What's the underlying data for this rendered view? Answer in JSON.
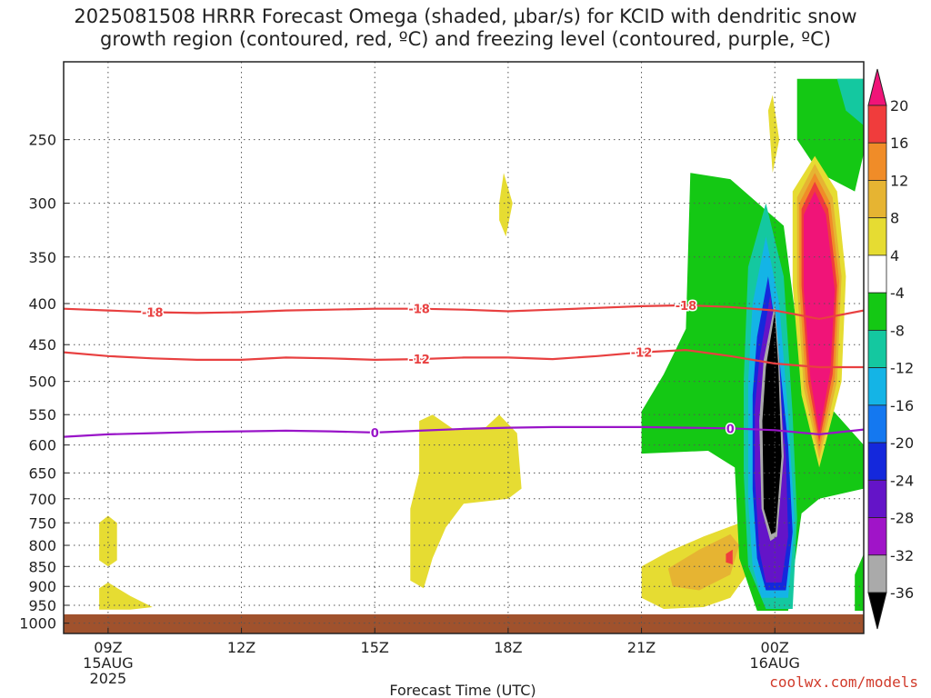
{
  "title": {
    "line1": "2025081508 HRRR Forecast Omega (shaded, μbar/s) for KCID with dendritic snow",
    "line2": "growth region (contoured, red, ºC) and freezing level (contoured, purple, ºC)"
  },
  "credit": "coolwx.com/models",
  "chart_data": {
    "type": "heatmap",
    "xlabel": "Forecast Time (UTC)",
    "ylabel": "",
    "x_ticks": [
      {
        "hour": 0,
        "label": [
          "09Z",
          "15AUG",
          "2025"
        ]
      },
      {
        "hour": 3,
        "label": [
          "12Z"
        ]
      },
      {
        "hour": 6,
        "label": [
          "15Z"
        ]
      },
      {
        "hour": 9,
        "label": [
          "18Z"
        ]
      },
      {
        "hour": 12,
        "label": [
          "21Z"
        ]
      },
      {
        "hour": 15,
        "label": [
          "00Z",
          "16AUG"
        ]
      }
    ],
    "xlim_hours": [
      -1,
      17
    ],
    "y_scale": "log",
    "ylim": [
      1030,
      200
    ],
    "y_ticks": [
      250,
      300,
      350,
      400,
      450,
      500,
      550,
      600,
      650,
      700,
      750,
      800,
      850,
      900,
      950,
      1000
    ],
    "grid": true,
    "ground_level_hpa": 975,
    "ground_color": "#a0522d",
    "colorbar": {
      "levels": [
        20,
        16,
        12,
        8,
        4,
        -4,
        -8,
        -12,
        -16,
        -20,
        -24,
        -28,
        -32,
        -36
      ],
      "colors": [
        "#f01478",
        "#f03c3c",
        "#f08c28",
        "#e6b432",
        "#e6dc32",
        "#ffffff",
        "#14c814",
        "#14c8a0",
        "#14b4e6",
        "#1478f0",
        "#1428dc",
        "#6414c8",
        "#a014c8",
        "#aaaaaa",
        "#000000"
      ]
    },
    "contours": [
      {
        "name": "-18",
        "color": "#e84040",
        "x": [
          -1,
          0,
          1,
          2,
          3,
          4,
          5,
          6,
          7,
          8,
          9,
          10,
          11,
          12,
          13,
          14,
          15,
          16,
          17
        ],
        "y": [
          406,
          408,
          410,
          411,
          410,
          408,
          407,
          406,
          406,
          407,
          409,
          407,
          405,
          403,
          402,
          404,
          408,
          418,
          408
        ],
        "labels_at_hours": [
          1,
          7,
          13
        ]
      },
      {
        "name": "-12",
        "color": "#e84040",
        "x": [
          -1,
          0,
          1,
          2,
          3,
          4,
          5,
          6,
          7,
          8,
          9,
          10,
          11,
          12,
          13,
          14,
          15,
          16,
          17
        ],
        "y": [
          460,
          465,
          468,
          470,
          470,
          467,
          468,
          470,
          469,
          467,
          467,
          469,
          465,
          460,
          457,
          465,
          475,
          480,
          480
        ],
        "labels_at_hours": [
          7,
          12
        ]
      },
      {
        "name": "0",
        "color": "#9914c8",
        "x": [
          -1,
          0,
          1,
          2,
          3,
          4,
          5,
          6,
          7,
          8,
          9,
          10,
          11,
          12,
          13,
          14,
          15,
          16,
          17
        ],
        "y": [
          586,
          582,
          580,
          578,
          577,
          576,
          577,
          579,
          576,
          573,
          571,
          570,
          570,
          570,
          571,
          572,
          575,
          582,
          574
        ],
        "labels_at_hours": [
          6,
          14
        ]
      }
    ],
    "shaded_regions": [
      {
        "level": 4,
        "color": "#e6dc32",
        "points_hr_hpa": [
          [
            -0.2,
            750
          ],
          [
            0,
            735
          ],
          [
            0.2,
            750
          ],
          [
            0.2,
            835
          ],
          [
            0,
            850
          ],
          [
            -0.2,
            835
          ]
        ]
      },
      {
        "level": 4,
        "color": "#e6dc32",
        "points_hr_hpa": [
          [
            -0.2,
            905
          ],
          [
            0,
            890
          ],
          [
            0.5,
            925
          ],
          [
            1,
            955
          ],
          [
            0.5,
            962
          ],
          [
            -0.2,
            962
          ]
        ]
      },
      {
        "level": 4,
        "color": "#e6dc32",
        "points_hr_hpa": [
          [
            8.8,
            300
          ],
          [
            8.9,
            275
          ],
          [
            9.1,
            300
          ],
          [
            8.95,
            330
          ],
          [
            8.8,
            315
          ]
        ]
      },
      {
        "level": 4,
        "color": "#e6dc32",
        "points_hr_hpa": [
          [
            7,
            560
          ],
          [
            7.3,
            550
          ],
          [
            7.8,
            575
          ],
          [
            8.5,
            570
          ],
          [
            8.8,
            550
          ],
          [
            9.2,
            580
          ],
          [
            9.3,
            680
          ],
          [
            9,
            700
          ],
          [
            8,
            710
          ],
          [
            7.6,
            760
          ],
          [
            7.3,
            830
          ],
          [
            7.1,
            905
          ],
          [
            6.8,
            885
          ],
          [
            6.8,
            720
          ],
          [
            7,
            650
          ]
        ]
      },
      {
        "level": 4,
        "color": "#e6dc32",
        "points_hr_hpa": [
          [
            12,
            850
          ],
          [
            12.6,
            815
          ],
          [
            13.4,
            780
          ],
          [
            14.5,
            740
          ],
          [
            14.5,
            850
          ],
          [
            14,
            930
          ],
          [
            13.4,
            955
          ],
          [
            12.5,
            960
          ],
          [
            12,
            930
          ]
        ]
      },
      {
        "level": 8,
        "color": "#e6b432",
        "points_hr_hpa": [
          [
            12.6,
            855
          ],
          [
            13.3,
            810
          ],
          [
            14,
            775
          ],
          [
            14.2,
            800
          ],
          [
            14,
            870
          ],
          [
            13.3,
            910
          ],
          [
            12.7,
            900
          ]
        ]
      },
      {
        "level": 16,
        "color": "#f03c3c",
        "points_hr_hpa": [
          [
            13.9,
            820
          ],
          [
            14.05,
            810
          ],
          [
            14.05,
            845
          ],
          [
            13.9,
            840
          ]
        ]
      },
      {
        "level": 4,
        "color": "#e6dc32",
        "points_hr_hpa": [
          [
            14.85,
            230
          ],
          [
            14.95,
            220
          ],
          [
            15.1,
            250
          ],
          [
            14.95,
            275
          ]
        ]
      },
      {
        "level": -4,
        "color": "#14c814",
        "points_hr_hpa": [
          [
            13.1,
            275
          ],
          [
            14,
            280
          ],
          [
            15.2,
            320
          ],
          [
            15.5,
            430
          ],
          [
            16,
            520
          ],
          [
            17,
            600
          ],
          [
            17,
            680
          ],
          [
            16,
            700
          ],
          [
            15.6,
            730
          ],
          [
            15.3,
            965
          ],
          [
            14.6,
            965
          ],
          [
            14.2,
            830
          ],
          [
            14.1,
            640
          ],
          [
            13.5,
            610
          ],
          [
            12,
            615
          ],
          [
            12,
            545
          ],
          [
            12.5,
            490
          ],
          [
            13,
            430
          ]
        ]
      },
      {
        "level": -4,
        "color": "#14c814",
        "points_hr_hpa": [
          [
            15.5,
            210
          ],
          [
            17,
            210
          ],
          [
            17,
            260
          ],
          [
            16.8,
            290
          ],
          [
            16,
            275
          ],
          [
            15.5,
            250
          ]
        ]
      },
      {
        "level": -4,
        "color": "#14c814",
        "points_hr_hpa": [
          [
            16.8,
            870
          ],
          [
            17,
            820
          ],
          [
            17,
            965
          ],
          [
            16.8,
            965
          ]
        ]
      },
      {
        "level": -8,
        "color": "#14c8a0",
        "points_hr_hpa": [
          [
            16.4,
            210
          ],
          [
            17,
            210
          ],
          [
            17,
            240
          ],
          [
            16.6,
            230
          ]
        ]
      },
      {
        "level": -8,
        "color": "#14c8a0",
        "points_hr_hpa": [
          [
            14.4,
            360
          ],
          [
            14.8,
            300
          ],
          [
            15.2,
            370
          ],
          [
            15.4,
            550
          ],
          [
            15.5,
            740
          ],
          [
            15.4,
            960
          ],
          [
            14.8,
            960
          ],
          [
            14.4,
            850
          ],
          [
            14.3,
            650
          ],
          [
            14.3,
            500
          ]
        ]
      },
      {
        "level": -16,
        "color": "#14b4e6",
        "points_hr_hpa": [
          [
            14.5,
            400
          ],
          [
            14.8,
            330
          ],
          [
            15.1,
            400
          ],
          [
            15.3,
            550
          ],
          [
            15.45,
            750
          ],
          [
            15.3,
            930
          ],
          [
            14.7,
            930
          ],
          [
            14.5,
            850
          ],
          [
            14.4,
            700
          ],
          [
            14.4,
            500
          ]
        ]
      },
      {
        "level": -24,
        "color": "#1428dc",
        "points_hr_hpa": [
          [
            14.6,
            440
          ],
          [
            14.85,
            370
          ],
          [
            15.05,
            440
          ],
          [
            15.3,
            600
          ],
          [
            15.4,
            770
          ],
          [
            15.25,
            910
          ],
          [
            14.8,
            910
          ],
          [
            14.6,
            830
          ],
          [
            14.5,
            680
          ],
          [
            14.5,
            520
          ]
        ]
      },
      {
        "level": -28,
        "color": "#6414c8",
        "points_hr_hpa": [
          [
            14.65,
            470
          ],
          [
            14.9,
            390
          ],
          [
            15.05,
            460
          ],
          [
            15.25,
            620
          ],
          [
            15.3,
            780
          ],
          [
            15.15,
            890
          ],
          [
            14.8,
            890
          ],
          [
            14.65,
            810
          ],
          [
            14.55,
            660
          ],
          [
            14.55,
            540
          ]
        ]
      },
      {
        "level": -32,
        "color": "#aaaaaa",
        "points_hr_hpa": [
          [
            14.75,
            470
          ],
          [
            15,
            400
          ],
          [
            15.1,
            470
          ],
          [
            15.2,
            620
          ],
          [
            15.05,
            780
          ],
          [
            14.9,
            790
          ],
          [
            14.7,
            720
          ],
          [
            14.65,
            560
          ]
        ]
      },
      {
        "level": -36,
        "color": "#000000",
        "points_hr_hpa": [
          [
            14.8,
            480
          ],
          [
            15,
            410
          ],
          [
            15.08,
            480
          ],
          [
            15.15,
            620
          ],
          [
            15.02,
            770
          ],
          [
            14.92,
            775
          ],
          [
            14.75,
            720
          ],
          [
            14.72,
            560
          ]
        ]
      },
      {
        "level": 4,
        "color": "#e6dc32",
        "points_hr_hpa": [
          [
            15.4,
            290
          ],
          [
            15.9,
            262
          ],
          [
            16.4,
            290
          ],
          [
            16.6,
            370
          ],
          [
            16.5,
            500
          ],
          [
            16,
            640
          ],
          [
            15.6,
            520
          ],
          [
            15.4,
            380
          ]
        ]
      },
      {
        "level": 8,
        "color": "#e6b432",
        "points_hr_hpa": [
          [
            15.5,
            295
          ],
          [
            15.9,
            268
          ],
          [
            16.3,
            295
          ],
          [
            16.5,
            370
          ],
          [
            16.4,
            500
          ],
          [
            16,
            625
          ],
          [
            15.65,
            510
          ],
          [
            15.5,
            380
          ]
        ]
      },
      {
        "level": 12,
        "color": "#f08c28",
        "points_hr_hpa": [
          [
            15.55,
            300
          ],
          [
            15.9,
            275
          ],
          [
            16.25,
            300
          ],
          [
            16.45,
            375
          ],
          [
            16.35,
            495
          ],
          [
            16,
            610
          ],
          [
            15.7,
            505
          ],
          [
            15.55,
            380
          ]
        ]
      },
      {
        "level": 16,
        "color": "#f03c3c",
        "points_hr_hpa": [
          [
            15.6,
            305
          ],
          [
            15.9,
            282
          ],
          [
            16.2,
            305
          ],
          [
            16.4,
            380
          ],
          [
            16.3,
            490
          ],
          [
            16,
            595
          ],
          [
            15.75,
            500
          ],
          [
            15.6,
            380
          ]
        ]
      },
      {
        "level": 20,
        "color": "#f01478",
        "points_hr_hpa": [
          [
            15.65,
            310
          ],
          [
            15.9,
            290
          ],
          [
            16.15,
            310
          ],
          [
            16.35,
            385
          ],
          [
            16.25,
            485
          ],
          [
            16,
            580
          ],
          [
            15.8,
            495
          ],
          [
            15.65,
            385
          ]
        ]
      }
    ]
  }
}
